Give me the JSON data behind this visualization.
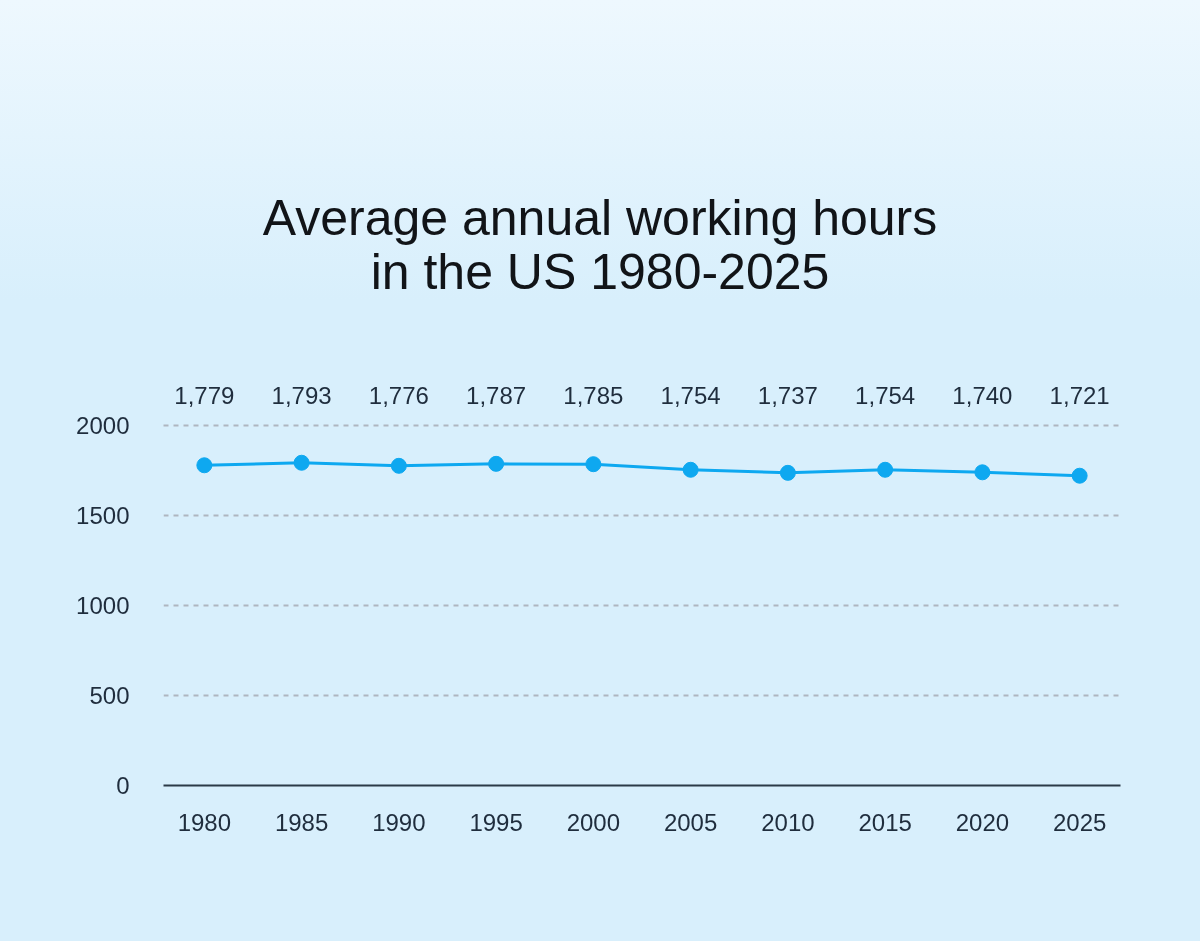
{
  "chart_data": {
    "type": "line",
    "title": "Average annual working hours\nin the US 1980-2025",
    "categories": [
      "1980",
      "1985",
      "1990",
      "1995",
      "2000",
      "2005",
      "2010",
      "2015",
      "2020",
      "2025"
    ],
    "values": [
      1779,
      1793,
      1776,
      1787,
      1785,
      1754,
      1737,
      1754,
      1740,
      1721
    ],
    "value_labels": [
      "1,779",
      "1,793",
      "1,776",
      "1,787",
      "1,785",
      "1,754",
      "1,737",
      "1,754",
      "1,740",
      "1,721"
    ],
    "color": "#0ea8f0",
    "marker": "circle",
    "ylim": [
      0,
      2000
    ],
    "yticks": [
      0,
      500,
      1000,
      1500,
      2000
    ],
    "grid": "y"
  }
}
